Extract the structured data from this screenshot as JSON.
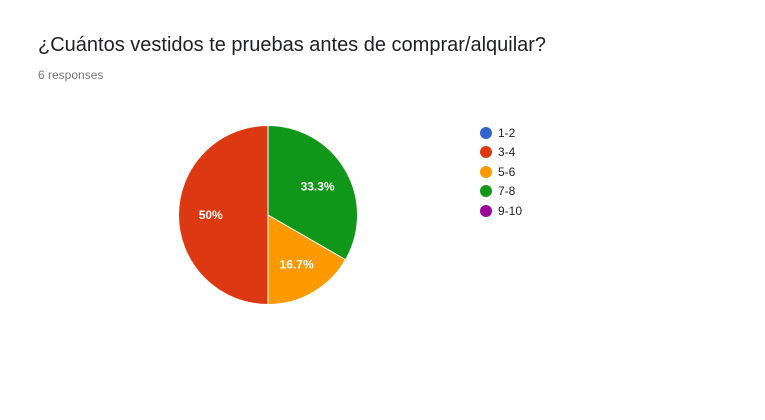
{
  "header": {
    "title": "¿Cuántos vestidos te pruebas antes de comprar/alquilar?",
    "responses": "6 responses"
  },
  "chart_data": {
    "type": "pie",
    "title": "¿Cuántos vestidos te pruebas antes de comprar/alquilar?",
    "categories": [
      "1-2",
      "3-4",
      "5-6",
      "7-8",
      "9-10"
    ],
    "values": [
      0,
      3,
      1,
      2,
      0
    ],
    "percent_labels": [
      "",
      "50%",
      "16.7%",
      "33.3%",
      ""
    ],
    "colors": [
      "#3366cc",
      "#dc3912",
      "#ff9900",
      "#109618",
      "#990099"
    ],
    "legend_position": "right"
  }
}
